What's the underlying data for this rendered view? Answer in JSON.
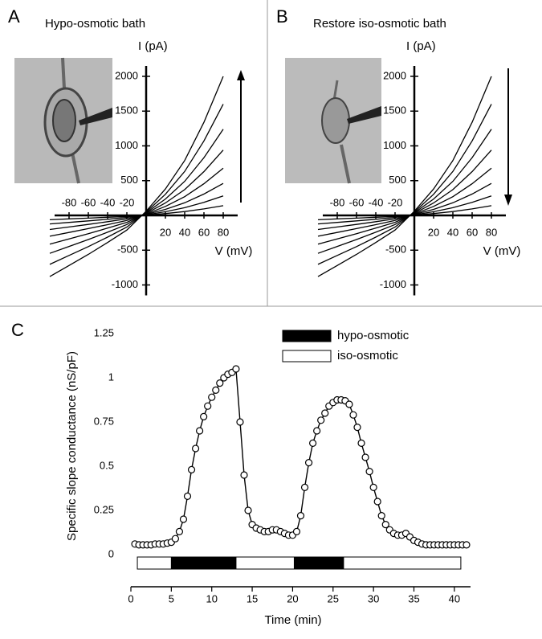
{
  "chart_data": [
    {
      "type": "line",
      "panel_label": "A",
      "title": "Hypo-osmotic bath",
      "xlabel": "V (mV)",
      "ylabel": "I (pA)",
      "x": [
        -100,
        -80,
        -60,
        -40,
        -20,
        0,
        20,
        40,
        60,
        80
      ],
      "series": [
        {
          "color": "#000000",
          "values": [
            -880,
            -720,
            -560,
            -390,
            -210,
            60,
            380,
            790,
            1340,
            2000
          ]
        },
        {
          "color": "#000000",
          "values": [
            -704,
            -576,
            -448,
            -312,
            -168,
            48,
            304,
            632,
            1072,
            1600
          ]
        },
        {
          "color": "#000000",
          "values": [
            -546,
            -446,
            -347,
            -242,
            -130,
            37,
            236,
            490,
            831,
            1240
          ]
        },
        {
          "color": "#000000",
          "values": [
            -414,
            -338,
            -263,
            -183,
            -99,
            28,
            179,
            371,
            630,
            940
          ]
        },
        {
          "color": "#000000",
          "values": [
            -299,
            -245,
            -190,
            -133,
            -71,
            20,
            129,
            269,
            456,
            680
          ]
        },
        {
          "color": "#000000",
          "values": [
            -202,
            -166,
            -129,
            -90,
            -48,
            14,
            87,
            182,
            308,
            460
          ]
        },
        {
          "color": "#000000",
          "values": [
            -123,
            -101,
            -78,
            -55,
            -29,
            8,
            53,
            111,
            188,
            280
          ]
        },
        {
          "color": "#000000",
          "values": [
            -62,
            -50,
            -39,
            -27,
            -15,
            4,
            27,
            55,
            94,
            140
          ]
        }
      ],
      "xlim": [
        -100,
        95
      ],
      "ylim": [
        -1150,
        2150
      ],
      "xticks": [
        -80,
        -60,
        -40,
        -20,
        20,
        40,
        60,
        80
      ],
      "yticks": [
        -1000,
        -500,
        500,
        1000,
        1500,
        2000
      ]
    },
    {
      "type": "line",
      "panel_label": "B",
      "title": "Restore iso-osmotic bath",
      "xlabel": "V (mV)",
      "ylabel": "I (pA)",
      "x": [
        -100,
        -80,
        -60,
        -40,
        -20,
        0,
        20,
        40,
        60,
        80
      ],
      "series": [
        {
          "color": "#000000",
          "values": [
            -880,
            -720,
            -560,
            -390,
            -210,
            60,
            380,
            790,
            1340,
            2000
          ]
        },
        {
          "color": "#000000",
          "values": [
            -704,
            -576,
            -448,
            -312,
            -168,
            48,
            304,
            632,
            1072,
            1600
          ]
        },
        {
          "color": "#000000",
          "values": [
            -546,
            -446,
            -347,
            -242,
            -130,
            37,
            236,
            490,
            831,
            1240
          ]
        },
        {
          "color": "#000000",
          "values": [
            -414,
            -338,
            -263,
            -183,
            -99,
            28,
            179,
            371,
            630,
            940
          ]
        },
        {
          "color": "#000000",
          "values": [
            -299,
            -245,
            -190,
            -133,
            -71,
            20,
            129,
            269,
            456,
            680
          ]
        },
        {
          "color": "#000000",
          "values": [
            -202,
            -166,
            -129,
            -90,
            -48,
            14,
            87,
            182,
            308,
            460
          ]
        },
        {
          "color": "#000000",
          "values": [
            -123,
            -101,
            -78,
            -55,
            -29,
            8,
            53,
            111,
            188,
            280
          ]
        },
        {
          "color": "#000000",
          "values": [
            -62,
            -50,
            -39,
            -27,
            -15,
            4,
            27,
            55,
            94,
            140
          ]
        }
      ],
      "xlim": [
        -100,
        95
      ],
      "ylim": [
        -1150,
        2150
      ],
      "xticks": [
        -80,
        -60,
        -40,
        -20,
        20,
        40,
        60,
        80
      ],
      "yticks": [
        -1000,
        -500,
        500,
        1000,
        1500,
        2000
      ]
    },
    {
      "type": "line",
      "panel_label": "C",
      "xlabel": "Time (min)",
      "ylabel": "Specific slope conductance (nS/pF)",
      "markers": true,
      "x": [
        0.5,
        1,
        1.5,
        2,
        2.5,
        3,
        3.5,
        4,
        4.5,
        5,
        5.5,
        6,
        6.5,
        7,
        7.5,
        8,
        8.5,
        9,
        9.5,
        10,
        10.5,
        11,
        11.5,
        12,
        12.5,
        13,
        13.5,
        14,
        14.5,
        15,
        15.5,
        16,
        16.5,
        17,
        17.5,
        18,
        18.5,
        19,
        19.5,
        20,
        20.5,
        21,
        21.5,
        22,
        22.5,
        23,
        23.5,
        24,
        24.5,
        25,
        25.5,
        26,
        26.5,
        27,
        27.5,
        28,
        28.5,
        29,
        29.5,
        30,
        30.5,
        31,
        31.5,
        32,
        32.5,
        33,
        33.5,
        34,
        34.5,
        35,
        35.5,
        36,
        36.5,
        37,
        37.5,
        38,
        38.5,
        39,
        39.5,
        40,
        40.5,
        41,
        41.5
      ],
      "series": [
        {
          "color": "#000000",
          "values": [
            0.06,
            0.055,
            0.055,
            0.055,
            0.055,
            0.06,
            0.06,
            0.06,
            0.065,
            0.07,
            0.09,
            0.13,
            0.2,
            0.33,
            0.48,
            0.6,
            0.7,
            0.78,
            0.84,
            0.89,
            0.93,
            0.97,
            1.0,
            1.02,
            1.03,
            1.05,
            0.75,
            0.45,
            0.25,
            0.17,
            0.15,
            0.14,
            0.13,
            0.13,
            0.14,
            0.14,
            0.13,
            0.12,
            0.11,
            0.11,
            0.13,
            0.22,
            0.38,
            0.52,
            0.63,
            0.7,
            0.76,
            0.8,
            0.84,
            0.86,
            0.875,
            0.875,
            0.87,
            0.85,
            0.79,
            0.72,
            0.63,
            0.55,
            0.47,
            0.38,
            0.3,
            0.22,
            0.17,
            0.14,
            0.12,
            0.11,
            0.11,
            0.12,
            0.1,
            0.08,
            0.07,
            0.06,
            0.055,
            0.055,
            0.055,
            0.055,
            0.055,
            0.055,
            0.055,
            0.055,
            0.055,
            0.055,
            0.055
          ]
        }
      ],
      "xlim": [
        0,
        42
      ],
      "ylim": [
        0,
        1.25
      ],
      "xticks": [
        0,
        5,
        10,
        15,
        20,
        25,
        30,
        35,
        40
      ],
      "yticks": [
        0,
        0.25,
        0.5,
        0.75,
        1,
        1.25
      ],
      "bath_bar": [
        {
          "name": "hypo-osmotic",
          "color": "#000000",
          "spans": [
            [
              5,
              13
            ],
            [
              20.2,
              26.3
            ]
          ]
        },
        {
          "name": "iso-osmotic",
          "color": "#ffffff",
          "spans": [
            [
              0.8,
              40.8
            ]
          ]
        }
      ]
    }
  ]
}
